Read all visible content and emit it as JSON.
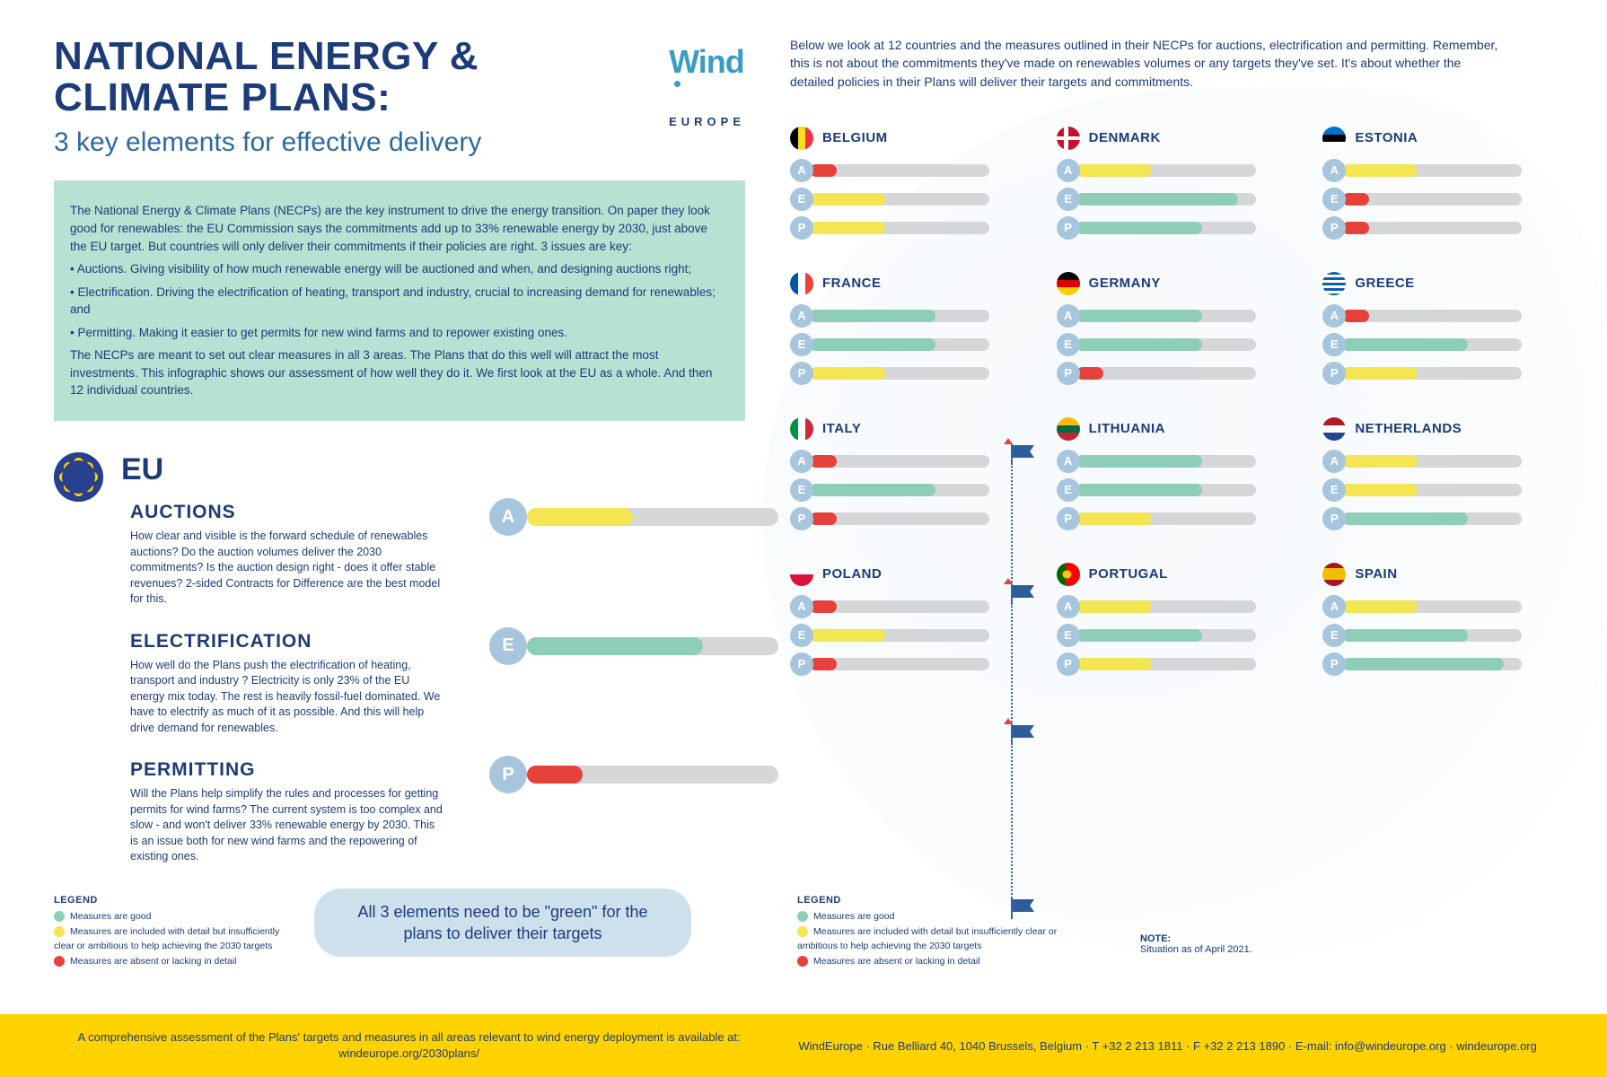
{
  "colors": {
    "good": "#8fceb6",
    "partial": "#f4e553",
    "bad": "#e6413a",
    "track": "#d5d6d8",
    "badge": "#a7c5dc",
    "navy": "#1c3b78"
  },
  "header": {
    "title": "NATIONAL ENERGY & CLIMATE PLANS:",
    "subtitle": "3 key elements for effective delivery",
    "logo_primary": "Wind",
    "logo_secondary": "EUROPE"
  },
  "intro": {
    "p1": "The National Energy & Climate Plans (NECPs) are the key instrument to drive the energy transition. On paper they look good for renewables: the EU Commission says the commitments add up to 33% renewable energy by 2030, just above the EU target. But countries will only deliver their commitments if their policies are right. 3 issues are key:",
    "b1": "• Auctions. Giving visibility of how much renewable energy will be auctioned and when, and designing auctions right;",
    "b2": "• Electrification. Driving the electrification of heating, transport and industry, crucial to increasing demand for renewables; and",
    "b3": "• Permitting. Making it easier to get permits for new wind farms and to repower existing ones.",
    "p2": "The NECPs are meant to set out clear measures in all 3 areas. The Plans that do this well will attract the most investments. This infographic shows our assessment of how well they do it. We first look at the EU as a whole. And then 12 individual countries."
  },
  "right_intro": "Below we look at 12 countries and the measures outlined in their NECPs for auctions, electrification and permitting. Remember, this is not about the commitments they've made on renewables volumes or any targets they've set. It's about whether the detailed policies in their Plans will deliver their targets and commitments.",
  "eu": {
    "label": "EU",
    "sections": [
      {
        "key": "A",
        "title": "AUCTIONS",
        "desc": "How clear and visible is the forward schedule of renewables auctions? Do the auction volumes deliver the 2030 commitments? Is the auction design right - does it offer stable revenues? 2-sided Contracts for Difference are the best model for this.",
        "pct": 42,
        "status": "partial"
      },
      {
        "key": "E",
        "title": "ELECTRIFICATION",
        "desc": "How well do the Plans push the electrification of heating, transport and industry ? Electricity is only 23% of the EU energy mix today. The rest is heavily fossil-fuel dominated. We have to electrify as much of it as possible. And this will help drive demand for renewables.",
        "pct": 70,
        "status": "good"
      },
      {
        "key": "P",
        "title": "PERMITTING",
        "desc": "Will the Plans help simplify the rules and processes for getting permits for wind farms? The current system is too complex and slow - and won't deliver 33% renewable energy by 2030. This is an issue both for new wind farms and the repowering of existing ones.",
        "pct": 22,
        "status": "bad"
      }
    ]
  },
  "callout": "All 3 elements need to be \"green\" for the plans to deliver their targets",
  "legend": {
    "header": "LEGEND",
    "good": "Measures are good",
    "partial": "Measures are included with detail but insufficiently clear or ambitious to help achieving the 2030 targets",
    "bad": "Measures are absent or lacking in detail"
  },
  "note": {
    "header": "NOTE:",
    "text": "Situation as of April 2021."
  },
  "keys": [
    "A",
    "E",
    "P"
  ],
  "countries": [
    {
      "name": "BELGIUM",
      "flag": "belgium",
      "bars": [
        {
          "pct": 15,
          "status": "bad"
        },
        {
          "pct": 42,
          "status": "partial"
        },
        {
          "pct": 42,
          "status": "partial"
        }
      ]
    },
    {
      "name": "DENMARK",
      "flag": "denmark",
      "bars": [
        {
          "pct": 42,
          "status": "partial"
        },
        {
          "pct": 90,
          "status": "good"
        },
        {
          "pct": 70,
          "status": "good"
        }
      ]
    },
    {
      "name": "ESTONIA",
      "flag": "estonia",
      "bars": [
        {
          "pct": 42,
          "status": "partial"
        },
        {
          "pct": 15,
          "status": "bad"
        },
        {
          "pct": 15,
          "status": "bad"
        }
      ]
    },
    {
      "name": "FRANCE",
      "flag": "france",
      "bars": [
        {
          "pct": 70,
          "status": "good"
        },
        {
          "pct": 70,
          "status": "good"
        },
        {
          "pct": 42,
          "status": "partial"
        }
      ]
    },
    {
      "name": "GERMANY",
      "flag": "germany",
      "bars": [
        {
          "pct": 70,
          "status": "good"
        },
        {
          "pct": 70,
          "status": "good"
        },
        {
          "pct": 15,
          "status": "bad"
        }
      ]
    },
    {
      "name": "GREECE",
      "flag": "greece",
      "bars": [
        {
          "pct": 15,
          "status": "bad"
        },
        {
          "pct": 70,
          "status": "good"
        },
        {
          "pct": 42,
          "status": "partial"
        }
      ]
    },
    {
      "name": "ITALY",
      "flag": "italy",
      "bars": [
        {
          "pct": 15,
          "status": "bad"
        },
        {
          "pct": 70,
          "status": "good"
        },
        {
          "pct": 15,
          "status": "bad"
        }
      ]
    },
    {
      "name": "LITHUANIA",
      "flag": "lithuania",
      "bars": [
        {
          "pct": 70,
          "status": "good"
        },
        {
          "pct": 70,
          "status": "good"
        },
        {
          "pct": 42,
          "status": "partial"
        }
      ]
    },
    {
      "name": "NETHERLANDS",
      "flag": "netherlands",
      "bars": [
        {
          "pct": 42,
          "status": "partial"
        },
        {
          "pct": 42,
          "status": "partial"
        },
        {
          "pct": 70,
          "status": "good"
        }
      ]
    },
    {
      "name": "POLAND",
      "flag": "poland",
      "bars": [
        {
          "pct": 15,
          "status": "bad"
        },
        {
          "pct": 42,
          "status": "partial"
        },
        {
          "pct": 15,
          "status": "bad"
        }
      ]
    },
    {
      "name": "PORTUGAL",
      "flag": "portugal",
      "bars": [
        {
          "pct": 42,
          "status": "partial"
        },
        {
          "pct": 70,
          "status": "good"
        },
        {
          "pct": 42,
          "status": "partial"
        }
      ]
    },
    {
      "name": "SPAIN",
      "flag": "spain",
      "bars": [
        {
          "pct": 42,
          "status": "partial"
        },
        {
          "pct": 70,
          "status": "good"
        },
        {
          "pct": 90,
          "status": "good"
        }
      ]
    }
  ],
  "footer": {
    "left": "A comprehensive assessment of the Plans' targets and measures in all areas relevant to wind energy deployment is available at: windeurope.org/2030plans/",
    "right": "WindEurope · Rue Belliard 40, 1040 Brussels, Belgium · T +32 2 213 1811 · F +32 2 213 1890 · E-mail: info@windeurope.org · windeurope.org"
  }
}
